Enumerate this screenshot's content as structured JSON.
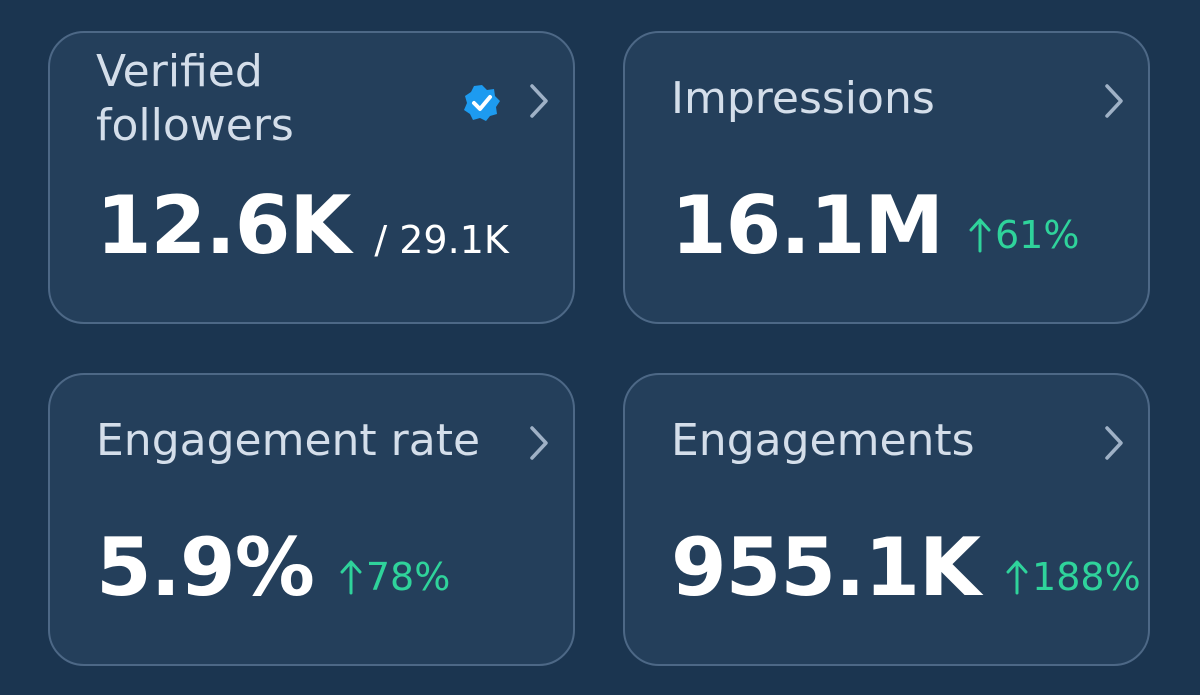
{
  "cards": [
    {
      "title": "Verified followers",
      "value": "12.6K",
      "secondary": "/ 29.1K",
      "verified": true
    },
    {
      "title": "Impressions",
      "value": "16.1M",
      "change": "61%"
    },
    {
      "title": "Engagement rate",
      "value": "5.9%",
      "change": "78%"
    },
    {
      "title": "Engagements",
      "value": "955.1K",
      "change": "188%"
    }
  ]
}
